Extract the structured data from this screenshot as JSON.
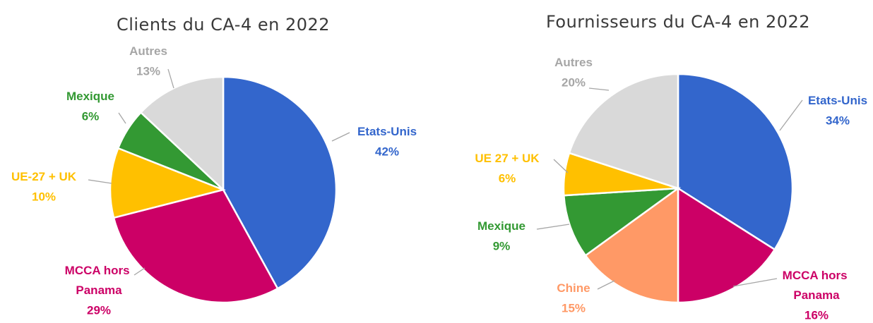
{
  "chart_data": [
    {
      "type": "pie",
      "title": "Clients du CA-4 en 2022",
      "categories": [
        "Etats-Unis",
        "MCCA hors Panama",
        "UE-27 + UK",
        "Mexique",
        "Autres"
      ],
      "values": [
        42,
        29,
        10,
        6,
        13
      ],
      "value_labels": [
        "42%",
        "29%",
        "10%",
        "6%",
        "13%"
      ],
      "colors": [
        "#3366cc",
        "#cc0066",
        "#ffc000",
        "#339933",
        "#d9d9d9"
      ]
    },
    {
      "type": "pie",
      "title": "Fournisseurs du CA-4 en 2022",
      "categories": [
        "Etats-Unis",
        "MCCA hors Panama",
        "Chine",
        "Mexique",
        "UE 27 + UK",
        "Autres"
      ],
      "values": [
        34,
        16,
        15,
        9,
        6,
        20
      ],
      "value_labels": [
        "34%",
        "16%",
        "15%",
        "9%",
        "6%",
        "20%"
      ],
      "colors": [
        "#3366cc",
        "#cc0066",
        "#ff9966",
        "#339933",
        "#ffc000",
        "#d9d9d9"
      ]
    }
  ]
}
